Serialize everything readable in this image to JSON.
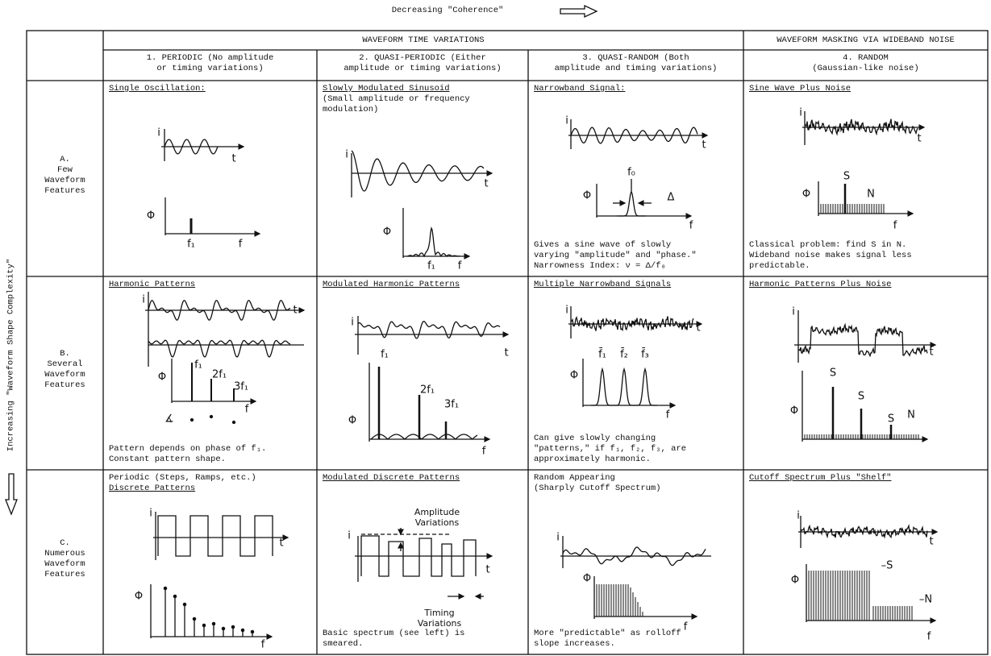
{
  "top_label": "Decreasing \"Coherence\"",
  "side_label": "Increasing \"Waveform Shape Complexity\"",
  "header": {
    "group_a": "WAVEFORM TIME VARIATIONS",
    "group_b": "WAVEFORM MASKING VIA WIDEBAND NOISE"
  },
  "columns": [
    [
      "1.  PERIODIC (No amplitude",
      "or timing variations)"
    ],
    [
      "2.  QUASI-PERIODIC (Either",
      "amplitude or timing variations)"
    ],
    [
      "3.  QUASI-RANDOM (Both",
      "amplitude and timing variations)"
    ],
    [
      "4.  RANDOM",
      "(Gaussian-like noise)"
    ]
  ],
  "rows": [
    {
      "label": [
        "A.",
        "Few",
        "Waveform",
        "Features"
      ],
      "cells": [
        {
          "title": "Single Oscillation:",
          "underlined": true,
          "labels": [
            "i",
            "t",
            "Φ",
            "f₁",
            "f"
          ]
        },
        {
          "title": "Slowly Modulated Sinusoid",
          "underlined": true,
          "subtitle": [
            "(Small amplitude or frequency",
            "modulation)"
          ],
          "labels": [
            "i",
            "t",
            "Φ",
            "f₁",
            "f"
          ]
        },
        {
          "title": "Narrowband Signal:",
          "underlined": true,
          "labels": [
            "i",
            "t",
            "f₀",
            "Φ",
            "Δ",
            "f"
          ],
          "note": [
            "Gives a sine wave of slowly",
            "varying \"amplitude\" and \"phase.\"",
            "Narrowness Index:  ν = Δ/f₀"
          ]
        },
        {
          "title": "Sine Wave Plus Noise",
          "underlined": true,
          "labels": [
            "i",
            "t",
            "S",
            "N",
            "Φ",
            "f"
          ],
          "note": [
            "Classical problem:  find S in N.",
            "Wideband noise makes signal less",
            "predictable."
          ]
        }
      ]
    },
    {
      "label": [
        "B.",
        "Several",
        "Waveform",
        "Features"
      ],
      "cells": [
        {
          "title": "Harmonic Patterns",
          "underlined": true,
          "labels": [
            "i",
            "t",
            "Φ",
            "f₁",
            "2f₁",
            "3f₁",
            "f",
            "∡"
          ],
          "note": [
            "Pattern depends on phase of f₁.",
            "Constant pattern shape."
          ]
        },
        {
          "title": "Modulated Harmonic Patterns",
          "underlined": true,
          "labels": [
            "i",
            "t",
            "Φ",
            "f₁",
            "2f₁",
            "3f₁",
            "f"
          ]
        },
        {
          "title": "Multiple Narrowband Signals",
          "underlined": true,
          "labels": [
            "i",
            "t",
            "f̄₁",
            "f̄₂",
            "f̄₃",
            "Φ",
            "f"
          ],
          "note": [
            "Can give slowly changing",
            "\"patterns,\" if f₁, f₂, f₃, are",
            "approximately harmonic."
          ]
        },
        {
          "title": "Harmonic Patterns Plus Noise",
          "underlined": true,
          "labels": [
            "i",
            "t",
            "Φ",
            "S",
            "S",
            "S",
            "N"
          ]
        }
      ]
    },
    {
      "label": [
        "C.",
        "Numerous",
        "Waveform",
        "Features"
      ],
      "cells": [
        {
          "pretitle": "Periodic (Steps, Ramps, etc.)",
          "title": "Discrete Patterns",
          "underlined": true,
          "labels": [
            "i",
            "t",
            "Φ",
            "f"
          ]
        },
        {
          "title": "Modulated Discrete Patterns",
          "underlined": true,
          "labels": [
            "Amplitude Variations",
            "i",
            "t",
            "Timing Variations"
          ],
          "note": [
            "Basic spectrum (see left) is",
            "smeared."
          ]
        },
        {
          "title": "Random Appearing",
          "underlined": false,
          "subtitle": [
            "(Sharply Cutoff Spectrum)"
          ],
          "labels": [
            "i",
            "Φ",
            "f"
          ],
          "note": [
            "More \"predictable\" as rolloff",
            "slope increases."
          ]
        },
        {
          "title": "Cutoff Spectrum Plus \"Shelf\"",
          "underlined": true,
          "labels": [
            "i",
            "t",
            "Φ",
            "–S",
            "–N",
            "f"
          ]
        }
      ]
    }
  ]
}
